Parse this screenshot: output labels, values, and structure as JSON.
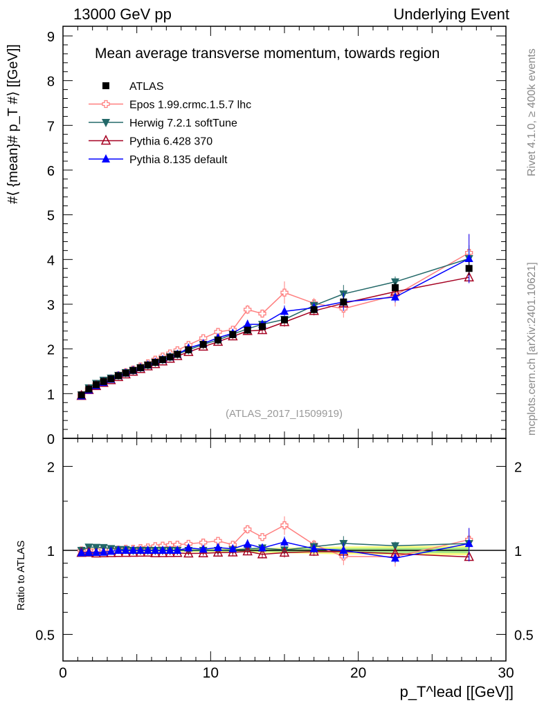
{
  "header": {
    "left": "13000 GeV pp",
    "right": "Underlying Event"
  },
  "side": {
    "rivet": "Rivet 4.1.0, ≥ 400k events",
    "mcplots": "mcplots.cern.ch [arXiv:2401.10621]"
  },
  "chart_data": [
    {
      "type": "line",
      "title": "Mean average transverse momentum, towards region",
      "ylabel": "#⟨ {mean}# p_T #⟩ [[GeV]]",
      "xlabel": "p_T^lead [[GeV]]",
      "xlim": [
        0,
        30
      ],
      "ylim": [
        0,
        9.2
      ],
      "yticks": [
        "0",
        "1",
        "2",
        "3",
        "4",
        "5",
        "6",
        "7",
        "8",
        "9"
      ],
      "analysis": "(ATLAS_2017_I1509919)",
      "x": [
        1.25,
        1.75,
        2.25,
        2.75,
        3.25,
        3.75,
        4.25,
        4.75,
        5.25,
        5.75,
        6.25,
        6.75,
        7.25,
        7.75,
        8.5,
        9.5,
        10.5,
        11.5,
        12.5,
        13.5,
        15,
        17,
        19,
        22.5,
        27.5
      ],
      "series": [
        {
          "name": "ATLAS",
          "color": "#000000",
          "marker": "square",
          "values": [
            0.97,
            1.1,
            1.2,
            1.27,
            1.33,
            1.4,
            1.46,
            1.52,
            1.58,
            1.64,
            1.7,
            1.76,
            1.82,
            1.88,
            1.98,
            2.1,
            2.2,
            2.32,
            2.42,
            2.5,
            2.65,
            2.88,
            3.05,
            3.37,
            3.8
          ],
          "err": [
            0.02,
            0.02,
            0.02,
            0.02,
            0.02,
            0.02,
            0.02,
            0.02,
            0.02,
            0.02,
            0.02,
            0.02,
            0.02,
            0.02,
            0.03,
            0.03,
            0.03,
            0.04,
            0.04,
            0.05,
            0.06,
            0.08,
            0.1,
            0.12,
            0.15
          ]
        },
        {
          "name": "Epos 1.99.crmc.1.5.7 lhc",
          "color": "#ff7f7f",
          "marker": "opencross",
          "values": [
            0.97,
            1.1,
            1.2,
            1.28,
            1.34,
            1.41,
            1.48,
            1.54,
            1.61,
            1.68,
            1.76,
            1.83,
            1.9,
            1.97,
            2.09,
            2.24,
            2.38,
            2.43,
            2.88,
            2.79,
            3.26,
            3.02,
            2.9,
            3.2,
            4.15
          ],
          "err": [
            0.01,
            0.01,
            0.01,
            0.01,
            0.01,
            0.01,
            0.01,
            0.01,
            0.02,
            0.02,
            0.02,
            0.02,
            0.03,
            0.03,
            0.04,
            0.05,
            0.06,
            0.08,
            0.1,
            0.09,
            0.25,
            0.12,
            0.2,
            0.25,
            0.42
          ]
        },
        {
          "name": "Herwig 7.2.1 softTune",
          "color": "#236868",
          "marker": "downtriangle",
          "values": [
            0.97,
            1.13,
            1.23,
            1.3,
            1.35,
            1.41,
            1.47,
            1.52,
            1.58,
            1.64,
            1.7,
            1.76,
            1.82,
            1.88,
            1.98,
            2.1,
            2.2,
            2.33,
            2.45,
            2.55,
            2.66,
            2.97,
            3.23,
            3.5,
            4.02
          ],
          "err": [
            0.01,
            0.01,
            0.01,
            0.01,
            0.01,
            0.01,
            0.01,
            0.01,
            0.02,
            0.02,
            0.02,
            0.02,
            0.03,
            0.03,
            0.03,
            0.04,
            0.05,
            0.06,
            0.07,
            0.08,
            0.1,
            0.12,
            0.2,
            0.12,
            0.3
          ]
        },
        {
          "name": "Pythia 6.428 370",
          "color": "#a50021",
          "marker": "opentriangle",
          "values": [
            0.95,
            1.08,
            1.17,
            1.24,
            1.3,
            1.37,
            1.43,
            1.49,
            1.55,
            1.61,
            1.66,
            1.72,
            1.78,
            1.84,
            1.93,
            2.05,
            2.16,
            2.28,
            2.4,
            2.42,
            2.6,
            2.85,
            3.02,
            3.28,
            3.6
          ],
          "err": [
            0.01,
            0.01,
            0.01,
            0.01,
            0.01,
            0.01,
            0.01,
            0.01,
            0.02,
            0.02,
            0.02,
            0.02,
            0.03,
            0.03,
            0.03,
            0.04,
            0.05,
            0.06,
            0.07,
            0.08,
            0.1,
            0.1,
            0.12,
            0.15,
            0.12
          ]
        },
        {
          "name": "Pythia 8.135 default",
          "color": "#0000ff",
          "marker": "triangle",
          "values": [
            0.95,
            1.08,
            1.18,
            1.25,
            1.32,
            1.4,
            1.46,
            1.52,
            1.58,
            1.64,
            1.7,
            1.76,
            1.82,
            1.88,
            2.02,
            2.12,
            2.25,
            2.35,
            2.55,
            2.55,
            2.84,
            2.92,
            3.05,
            3.16,
            4.02
          ],
          "err": [
            0.01,
            0.01,
            0.01,
            0.01,
            0.01,
            0.01,
            0.01,
            0.01,
            0.02,
            0.02,
            0.02,
            0.02,
            0.03,
            0.03,
            0.04,
            0.05,
            0.06,
            0.07,
            0.1,
            0.07,
            0.13,
            0.1,
            0.2,
            0.12,
            0.55
          ]
        }
      ]
    },
    {
      "type": "line",
      "ylabel": "Ratio to ATLAS",
      "ylim": [
        0.4,
        2.5
      ],
      "yscale": "log",
      "yticks": [
        "0.5",
        "1",
        "2"
      ],
      "xticks": [
        "0",
        "10",
        "20",
        "30"
      ]
    }
  ]
}
